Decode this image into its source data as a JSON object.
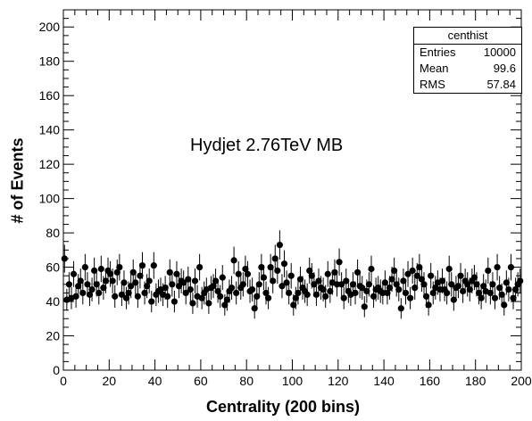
{
  "chart_data": {
    "type": "scatter",
    "title": "",
    "xlabel": "Centrality (200 bins)",
    "ylabel": "# of Events",
    "xlim": [
      0,
      200
    ],
    "ylim": [
      0,
      210
    ],
    "x_ticks": [
      0,
      20,
      40,
      60,
      80,
      100,
      120,
      140,
      160,
      180,
      200
    ],
    "y_ticks": [
      0,
      20,
      40,
      60,
      80,
      100,
      120,
      140,
      160,
      180,
      200
    ],
    "annotation": "Hydjet 2.76TeV MB",
    "stats": {
      "name": "centhist",
      "rows": [
        {
          "label": "Entries",
          "value": "10000"
        },
        {
          "label": "Mean",
          "value": "99.6"
        },
        {
          "label": "RMS",
          "value": "57.84"
        }
      ]
    },
    "marker_color": "#000000",
    "grid": false,
    "series": [
      {
        "x": [
          0.5,
          1.5,
          2.5,
          3.5,
          4.5,
          5.5,
          6.5,
          7.5,
          8.5,
          9.5,
          10.5,
          11.5,
          12.5,
          13.5,
          14.5,
          15.5,
          16.5,
          17.5,
          18.5,
          19.5,
          20.5,
          21.5,
          22.5,
          23.5,
          24.5,
          25.5,
          26.5,
          27.5,
          28.5,
          29.5,
          30.5,
          31.5,
          32.5,
          33.5,
          34.5,
          35.5,
          36.5,
          37.5,
          38.5,
          39.5,
          40.5,
          41.5,
          42.5,
          43.5,
          44.5,
          45.5,
          46.5,
          47.5,
          48.5,
          49.5,
          50.5,
          51.5,
          52.5,
          53.5,
          54.5,
          55.5,
          56.5,
          57.5,
          58.5,
          59.5,
          60.5,
          61.5,
          62.5,
          63.5,
          64.5,
          65.5,
          66.5,
          67.5,
          68.5,
          69.5,
          70.5,
          71.5,
          72.5,
          73.5,
          74.5,
          75.5,
          76.5,
          77.5,
          78.5,
          79.5,
          80.5,
          81.5,
          82.5,
          83.5,
          84.5,
          85.5,
          86.5,
          87.5,
          88.5,
          89.5,
          90.5,
          91.5,
          92.5,
          93.5,
          94.5,
          95.5,
          96.5,
          97.5,
          98.5,
          99.5,
          100.5,
          101.5,
          102.5,
          103.5,
          104.5,
          105.5,
          106.5,
          107.5,
          108.5,
          109.5,
          110.5,
          111.5,
          112.5,
          113.5,
          114.5,
          115.5,
          116.5,
          117.5,
          118.5,
          119.5,
          120.5,
          121.5,
          122.5,
          123.5,
          124.5,
          125.5,
          126.5,
          127.5,
          128.5,
          129.5,
          130.5,
          131.5,
          132.5,
          133.5,
          134.5,
          135.5,
          136.5,
          137.5,
          138.5,
          139.5,
          140.5,
          141.5,
          142.5,
          143.5,
          144.5,
          145.5,
          146.5,
          147.5,
          148.5,
          149.5,
          150.5,
          151.5,
          152.5,
          153.5,
          154.5,
          155.5,
          156.5,
          157.5,
          158.5,
          159.5,
          160.5,
          161.5,
          162.5,
          163.5,
          164.5,
          165.5,
          166.5,
          167.5,
          168.5,
          169.5,
          170.5,
          171.5,
          172.5,
          173.5,
          174.5,
          175.5,
          176.5,
          177.5,
          178.5,
          179.5,
          180.5,
          181.5,
          182.5,
          183.5,
          184.5,
          185.5,
          186.5,
          187.5,
          188.5,
          189.5,
          190.5,
          191.5,
          192.5,
          193.5,
          194.5,
          195.5,
          196.5,
          197.5,
          198.5,
          199.5
        ],
        "y": [
          65,
          41,
          50,
          42,
          56,
          43,
          49,
          52,
          45,
          60,
          50,
          44,
          47,
          58,
          50,
          45,
          59,
          48,
          52,
          58,
          56,
          52,
          43,
          57,
          60,
          44,
          51,
          42,
          45,
          49,
          57,
          51,
          43,
          55,
          61,
          45,
          49,
          52,
          40,
          61,
          44,
          46,
          47,
          44,
          48,
          43,
          57,
          50,
          40,
          56,
          49,
          52,
          51,
          45,
          53,
          47,
          39,
          52,
          43,
          60,
          42,
          45,
          47,
          39,
          48,
          49,
          52,
          46,
          43,
          54,
          38,
          41,
          46,
          48,
          64,
          45,
          56,
          48,
          50,
          59,
          56,
          46,
          47,
          36,
          43,
          50,
          60,
          54,
          45,
          42,
          60,
          52,
          65,
          58,
          73,
          49,
          62,
          51,
          45,
          55,
          38,
          42,
          45,
          53,
          48,
          46,
          44,
          58,
          55,
          50,
          44,
          52,
          48,
          47,
          43,
          56,
          46,
          51,
          57,
          50,
          63,
          50,
          42,
          52,
          46,
          44,
          50,
          45,
          57,
          49,
          48,
          37,
          46,
          50,
          59,
          43,
          47,
          48,
          46,
          45,
          51,
          45,
          48,
          53,
          58,
          50,
          47,
          36,
          52,
          45,
          56,
          42,
          58,
          48,
          55,
          60,
          53,
          50,
          43,
          38,
          55,
          45,
          48,
          51,
          47,
          52,
          47,
          45,
          59,
          50,
          41,
          48,
          49,
          55,
          46,
          52,
          50,
          47,
          52,
          54,
          50,
          45,
          42,
          49,
          46,
          58,
          45,
          50,
          42,
          60,
          48,
          44,
          38,
          51,
          47,
          60,
          42,
          47,
          50,
          52
        ],
        "errors": [
          8.1,
          6.4,
          7.1,
          6.5,
          7.5,
          6.6,
          7.0,
          7.2,
          6.7,
          7.7,
          7.1,
          6.6,
          6.9,
          7.6,
          7.1,
          6.7,
          7.7,
          6.9,
          7.2,
          7.6,
          7.5,
          7.2,
          6.6,
          7.5,
          7.7,
          6.6,
          7.1,
          6.5,
          6.7,
          7.0,
          7.5,
          7.1,
          6.6,
          7.4,
          7.8,
          6.7,
          7.0,
          7.2,
          6.3,
          7.8,
          6.6,
          6.8,
          6.9,
          6.6,
          6.9,
          6.6,
          7.5,
          7.1,
          6.3,
          7.5,
          7.0,
          7.2,
          7.1,
          6.7,
          7.3,
          6.9,
          6.2,
          7.2,
          6.6,
          7.7,
          6.5,
          6.7,
          6.9,
          6.2,
          6.9,
          7.0,
          7.2,
          6.8,
          6.6,
          7.3,
          6.2,
          6.4,
          6.8,
          6.9,
          8.0,
          6.7,
          7.5,
          6.9,
          7.1,
          7.7,
          7.5,
          6.8,
          6.9,
          6.0,
          6.6,
          7.1,
          7.7,
          7.3,
          6.7,
          6.5,
          7.7,
          7.2,
          8.1,
          7.6,
          8.5,
          7.0,
          7.9,
          7.1,
          6.7,
          7.4,
          6.2,
          6.5,
          6.7,
          7.3,
          6.9,
          6.8,
          6.6,
          7.6,
          7.4,
          7.1,
          6.6,
          7.2,
          6.9,
          6.9,
          6.6,
          7.5,
          6.8,
          7.1,
          7.5,
          7.1,
          7.9,
          7.1,
          6.5,
          7.2,
          6.8,
          6.6,
          7.1,
          6.7,
          7.5,
          7.0,
          6.9,
          6.1,
          6.8,
          7.1,
          7.7,
          6.6,
          6.9,
          6.9,
          6.8,
          6.7,
          7.1,
          6.7,
          6.9,
          7.3,
          7.6,
          7.1,
          6.9,
          6.0,
          7.2,
          6.7,
          7.5,
          6.5,
          7.6,
          6.9,
          7.4,
          7.7,
          7.3,
          7.1,
          6.6,
          6.2,
          7.4,
          6.7,
          6.9,
          7.1,
          6.9,
          7.2,
          6.9,
          6.7,
          7.7,
          7.1,
          6.4,
          6.9,
          7.0,
          7.4,
          6.8,
          7.2,
          7.1,
          6.9,
          7.2,
          7.3,
          7.1,
          6.7,
          6.5,
          7.0,
          6.8,
          7.6,
          6.7,
          7.1,
          6.5,
          7.7,
          6.9,
          6.6,
          6.2,
          7.1,
          6.9,
          7.7,
          6.5,
          6.9,
          7.1,
          7.2
        ]
      }
    ]
  }
}
